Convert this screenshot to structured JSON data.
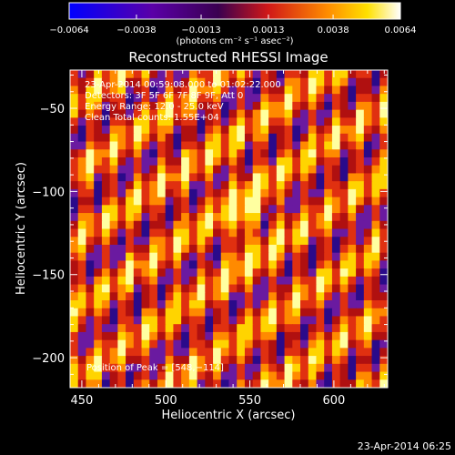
{
  "chart_data": {
    "type": "heatmap",
    "title": "Reconstructed RHESSI Image",
    "xlabel": "Heliocentric X (arcsec)",
    "ylabel": "Heliocentric Y (arcsec)",
    "xlim": [
      443,
      632
    ],
    "ylim": [
      -218,
      -27
    ],
    "x_ticks": [
      450,
      500,
      550,
      600
    ],
    "y_ticks": [
      -50,
      -100,
      -150,
      -200
    ],
    "x_tick_labels": [
      "450",
      "500",
      "550",
      "600"
    ],
    "y_tick_labels": [
      "−50",
      "−100",
      "−150",
      "−200"
    ],
    "colorbar": {
      "range": [
        -0.0064,
        0.0064
      ],
      "tick_values": [
        -0.0064,
        -0.0038,
        -0.0013,
        0.0013,
        0.0038,
        0.0064
      ],
      "tick_labels": [
        "−0.0064",
        "−0.0038",
        "−0.0013",
        "0.0013",
        "0.0038",
        "0.0064"
      ],
      "unit_label": "(photons cm⁻² s⁻¹ asec⁻²)",
      "colormap": "blue-purple-red-orange-yellow-white"
    },
    "annotations": {
      "time_range": "23-Apr-2014 00:59:08.000 to 01:02:22.000",
      "detectors": "Detectors: 3F 5F 6F 7F 8F 9F, Att 0",
      "energy": "Energy Range: 12.0 - 25.0 keV",
      "clean": "Clean    Total counts: 1.55E+04",
      "peak": "Position of Peak = [548,−114]"
    },
    "peak": {
      "x": 548,
      "y": -114
    },
    "pattern": {
      "description": "diagonal fringe pattern",
      "colors": [
        "#2a0a8a",
        "#6a1aa0",
        "#b01010",
        "#e03010",
        "#ff8a00",
        "#ffd400",
        "#ffffa0"
      ]
    }
  },
  "footer": {
    "timestamp": "23-Apr-2014 06:25"
  },
  "colors": {
    "background": "#000000",
    "text": "#ffffff"
  }
}
